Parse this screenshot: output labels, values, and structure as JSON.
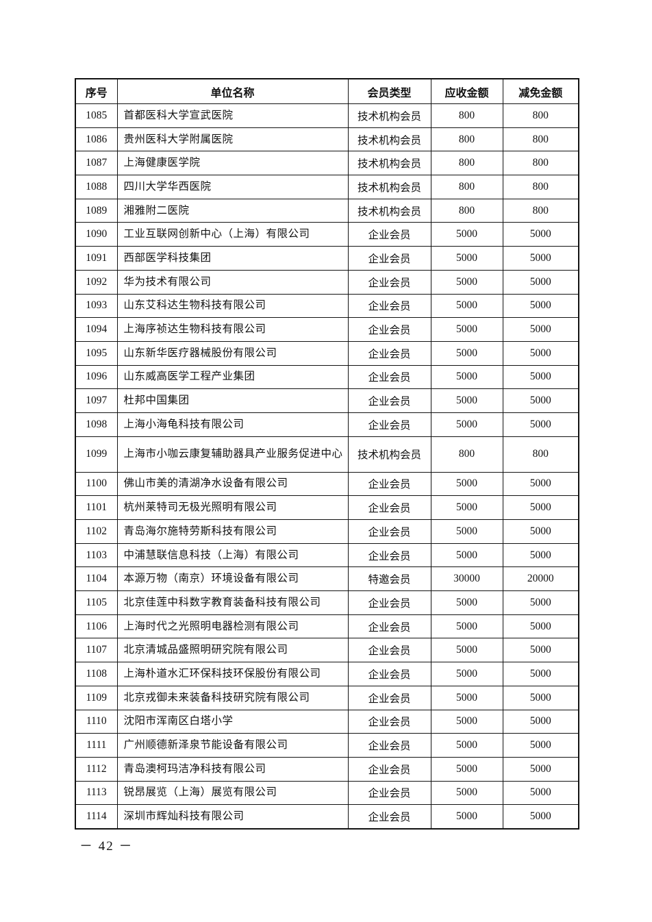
{
  "table": {
    "headers": [
      "序号",
      "单位名称",
      "会员类型",
      "应收金额",
      "减免金额"
    ],
    "rows": [
      [
        "1085",
        "首都医科大学宣武医院",
        "技术机构会员",
        "800",
        "800"
      ],
      [
        "1086",
        "贵州医科大学附属医院",
        "技术机构会员",
        "800",
        "800"
      ],
      [
        "1087",
        "上海健康医学院",
        "技术机构会员",
        "800",
        "800"
      ],
      [
        "1088",
        "四川大学华西医院",
        "技术机构会员",
        "800",
        "800"
      ],
      [
        "1089",
        "湘雅附二医院",
        "技术机构会员",
        "800",
        "800"
      ],
      [
        "1090",
        "工业互联网创新中心（上海）有限公司",
        "企业会员",
        "5000",
        "5000"
      ],
      [
        "1091",
        "西部医学科技集团",
        "企业会员",
        "5000",
        "5000"
      ],
      [
        "1092",
        "华为技术有限公司",
        "企业会员",
        "5000",
        "5000"
      ],
      [
        "1093",
        "山东艾科达生物科技有限公司",
        "企业会员",
        "5000",
        "5000"
      ],
      [
        "1094",
        "上海序祯达生物科技有限公司",
        "企业会员",
        "5000",
        "5000"
      ],
      [
        "1095",
        "山东新华医疗器械股份有限公司",
        "企业会员",
        "5000",
        "5000"
      ],
      [
        "1096",
        "山东威高医学工程产业集团",
        "企业会员",
        "5000",
        "5000"
      ],
      [
        "1097",
        "杜邦中国集团",
        "企业会员",
        "5000",
        "5000"
      ],
      [
        "1098",
        "上海小海龟科技有限公司",
        "企业会员",
        "5000",
        "5000"
      ],
      [
        "1099",
        "上海市小咖云康复辅助器具产业服务促进中心",
        "技术机构会员",
        "800",
        "800"
      ],
      [
        "1100",
        "佛山市美的清湖净水设备有限公司",
        "企业会员",
        "5000",
        "5000"
      ],
      [
        "1101",
        "杭州莱特司无极光照明有限公司",
        "企业会员",
        "5000",
        "5000"
      ],
      [
        "1102",
        "青岛海尔施特劳斯科技有限公司",
        "企业会员",
        "5000",
        "5000"
      ],
      [
        "1103",
        "中浦慧联信息科技（上海）有限公司",
        "企业会员",
        "5000",
        "5000"
      ],
      [
        "1104",
        "本源万物（南京）环境设备有限公司",
        "特邀会员",
        "30000",
        "20000"
      ],
      [
        "1105",
        "北京佳莲中科数字教育装备科技有限公司",
        "企业会员",
        "5000",
        "5000"
      ],
      [
        "1106",
        "上海时代之光照明电器检测有限公司",
        "企业会员",
        "5000",
        "5000"
      ],
      [
        "1107",
        "北京清城品盛照明研究院有限公司",
        "企业会员",
        "5000",
        "5000"
      ],
      [
        "1108",
        "上海朴道水汇环保科技环保股份有限公司",
        "企业会员",
        "5000",
        "5000"
      ],
      [
        "1109",
        "北京戎御未来装备科技研究院有限公司",
        "企业会员",
        "5000",
        "5000"
      ],
      [
        "1110",
        "沈阳市浑南区白塔小学",
        "企业会员",
        "5000",
        "5000"
      ],
      [
        "1111",
        "广州顺德新泽泉节能设备有限公司",
        "企业会员",
        "5000",
        "5000"
      ],
      [
        "1112",
        "青岛澳柯玛洁净科技有限公司",
        "企业会员",
        "5000",
        "5000"
      ],
      [
        "1113",
        "锐昂展览（上海）展览有限公司",
        "企业会员",
        "5000",
        "5000"
      ],
      [
        "1114",
        "深圳市辉灿科技有限公司",
        "企业会员",
        "5000",
        "5000"
      ]
    ]
  },
  "page_number": "－ 42 －"
}
